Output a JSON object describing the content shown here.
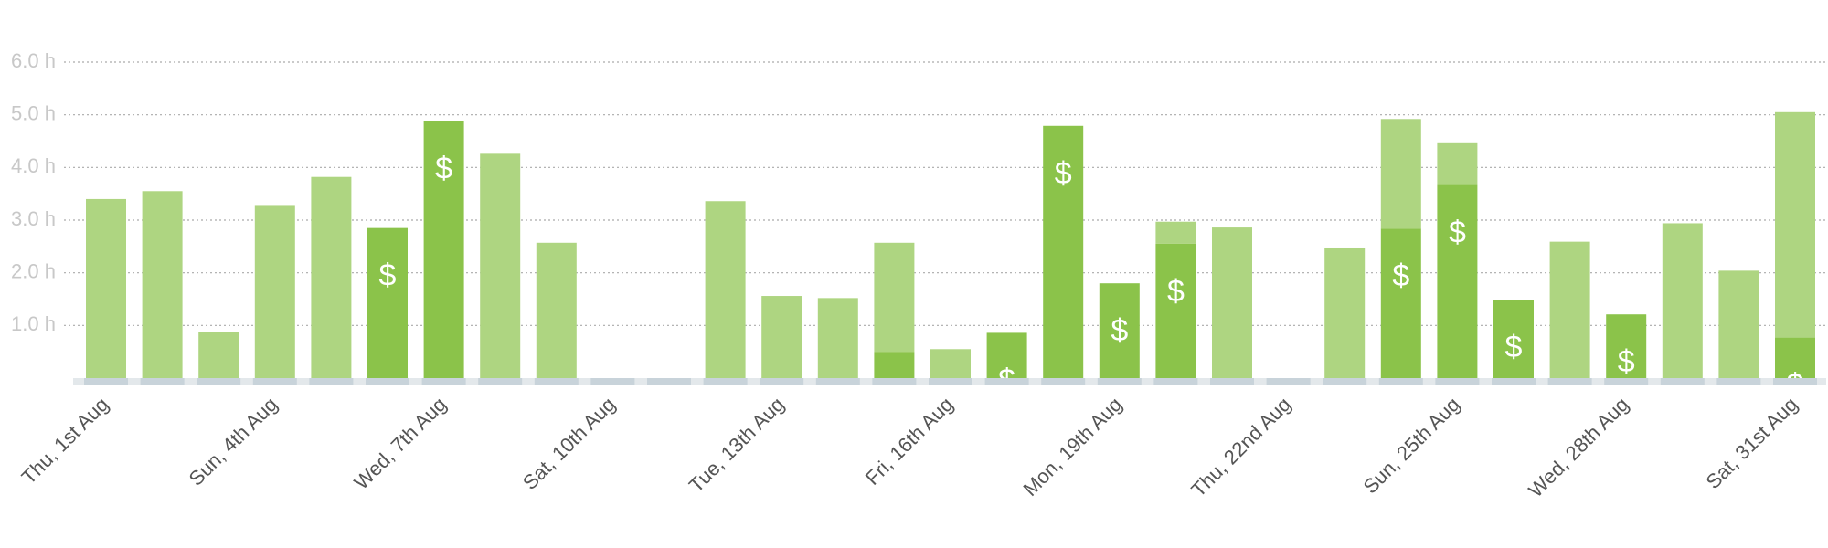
{
  "chart_data": {
    "type": "stacked_bar",
    "categories": [
      "Thu, 1st Aug",
      null,
      null,
      "Sun, 4th Aug",
      null,
      null,
      "Wed, 7th Aug",
      null,
      null,
      "Sat, 10th Aug",
      null,
      null,
      "Tue, 13th Aug",
      null,
      null,
      "Fri, 16th Aug",
      null,
      null,
      "Mon, 19th Aug",
      null,
      null,
      "Thu, 22nd Aug",
      null,
      null,
      "Sun, 25th Aug",
      null,
      null,
      "Wed, 28th Aug",
      null,
      null,
      "Sat, 31st Aug"
    ],
    "series": [
      {
        "color": "#8bc34a",
        "values": [
          0,
          0,
          0,
          0,
          0,
          2.85,
          4.88,
          0,
          0,
          0,
          0,
          0,
          0,
          0,
          0.5,
          0,
          0.86,
          4.79,
          1.8,
          2.55,
          0,
          0,
          0,
          2.84,
          3.67,
          1.49,
          0,
          1.21,
          0,
          0,
          0.77
        ]
      },
      {
        "color": "#aed581",
        "values": [
          3.4,
          3.55,
          0.88,
          3.27,
          3.82,
          0,
          0,
          4.26,
          2.57,
          0,
          0,
          3.36,
          1.56,
          1.52,
          2.07,
          0.55,
          0,
          0,
          0,
          0.42,
          2.86,
          0,
          2.48,
          2.08,
          0.79,
          0,
          2.59,
          0,
          2.94,
          2.04,
          4.28
        ]
      }
    ],
    "billable_icon": "$",
    "ylim": [
      0,
      6
    ],
    "yticks": [
      {
        "value": 1,
        "label": "1.0 h"
      },
      {
        "value": 2,
        "label": "2.0 h"
      },
      {
        "value": 3,
        "label": "3.0 h"
      },
      {
        "value": 4,
        "label": "4.0 h"
      },
      {
        "value": 5,
        "label": "5.0 h"
      },
      {
        "value": 6,
        "label": "6.0 h"
      }
    ],
    "grid": true
  }
}
